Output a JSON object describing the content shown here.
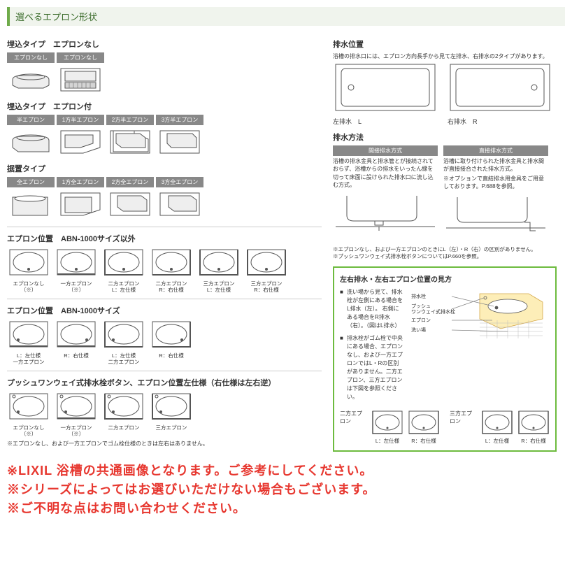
{
  "colors": {
    "green": "#6fab4a",
    "red": "#e7372f",
    "gray": "#888",
    "stroke": "#555"
  },
  "main_title": "選べるエプロン形状",
  "sec1": {
    "title": "埋込タイプ　エプロンなし",
    "labels": [
      "エプロンなし",
      "エプロンなし"
    ]
  },
  "sec2": {
    "title": "埋込タイプ　エプロン付",
    "labels": [
      "半エプロン",
      "1方半エプロン",
      "2方半エプロン",
      "3方半エプロン"
    ]
  },
  "sec3": {
    "title": "据置タイプ",
    "labels": [
      "全エプロン",
      "1方全エプロン",
      "2方全エプロン",
      "3方全エプロン"
    ]
  },
  "drain": {
    "title": "排水位置",
    "note": "浴槽の排水口には、エプロン方向長手から見て左排水、右排水の2タイプがあります。",
    "left": "左排水　L",
    "right": "右排水　R"
  },
  "dmethod": {
    "title": "排水方法",
    "m1": {
      "hdr": "間接排水方式",
      "t1": "浴槽の排水金具と排水管とが接続されておらず、浴槽からの排水をいったん縁を切って床面に設けられた排水口に流し込む方式。"
    },
    "m2": {
      "hdr": "直接排水方式",
      "t1": "浴槽に取り付けられた排水金具と排水間が直接接合された排水方式。",
      "t2": "※オプションで直結排水用金具をご用意しております。P.688を参照。"
    }
  },
  "apos1": {
    "title": "エプロン位置　ABN-1000サイズ以外",
    "items": [
      "エプロンなし（※）",
      "一方エプロン（※）",
      "二方エプロン\nL：左仕様",
      "二方エプロン\nR：右仕様",
      "三方エプロン\nL：左仕様",
      "三方エプロン\nR：右仕様"
    ],
    "notes": [
      "※エプロンなし、および一方エプロンのときにL（左）・R（右）の区別がありません。",
      "※プッシュワンウェイ式排水栓ボタンについてはP.660を参照。"
    ]
  },
  "apos2": {
    "title": "エプロン位置　ABN-1000サイズ",
    "items": [
      "L：左仕様\n一方エプロン",
      "R：右仕様",
      "L：左仕様\n二方エプロン",
      "R：右仕様"
    ]
  },
  "apos3": {
    "title": "プッシュワンウェイ式排水栓ボタン、エプロン位置左仕様（右仕様は左右逆）",
    "items": [
      "エプロンなし（※）",
      "一方エプロン（※）",
      "二方エプロン",
      "三方エプロン"
    ],
    "foot": "※エプロンなし、および一方エプロンでゴム栓仕様のときは左右はありません。"
  },
  "gbox": {
    "title": "左右排水・左右エプロン位置の見方",
    "b1": "洗い場から見て、排水栓が左側にある場合をL排水（左）。\n右側にある場合をR排水（右）。（図はL排水）",
    "b2": "排水栓がゴム栓で中央にある場合、エプロンなし、および一方エプロンではL・Rの区別がありません。二方エプロン、三方エプロンは下図を参照ください。",
    "labels": {
      "a": "排水栓",
      "b": "プッシュ\nワンウェイ式排水栓",
      "c": "エプロン",
      "d": "洗い場"
    },
    "set1": "二方エプロン",
    "set2": "三方エプロン",
    "caps": [
      "L：左仕様",
      "R：右仕様",
      "L：左仕様",
      "R：右仕様"
    ]
  },
  "red": [
    "※LIXIL 浴槽の共通画像となります。ご参考にしてください。",
    "※シリーズによってはお選びいただけない場合もございます。",
    "※ご不明な点はお問い合わせください。"
  ]
}
